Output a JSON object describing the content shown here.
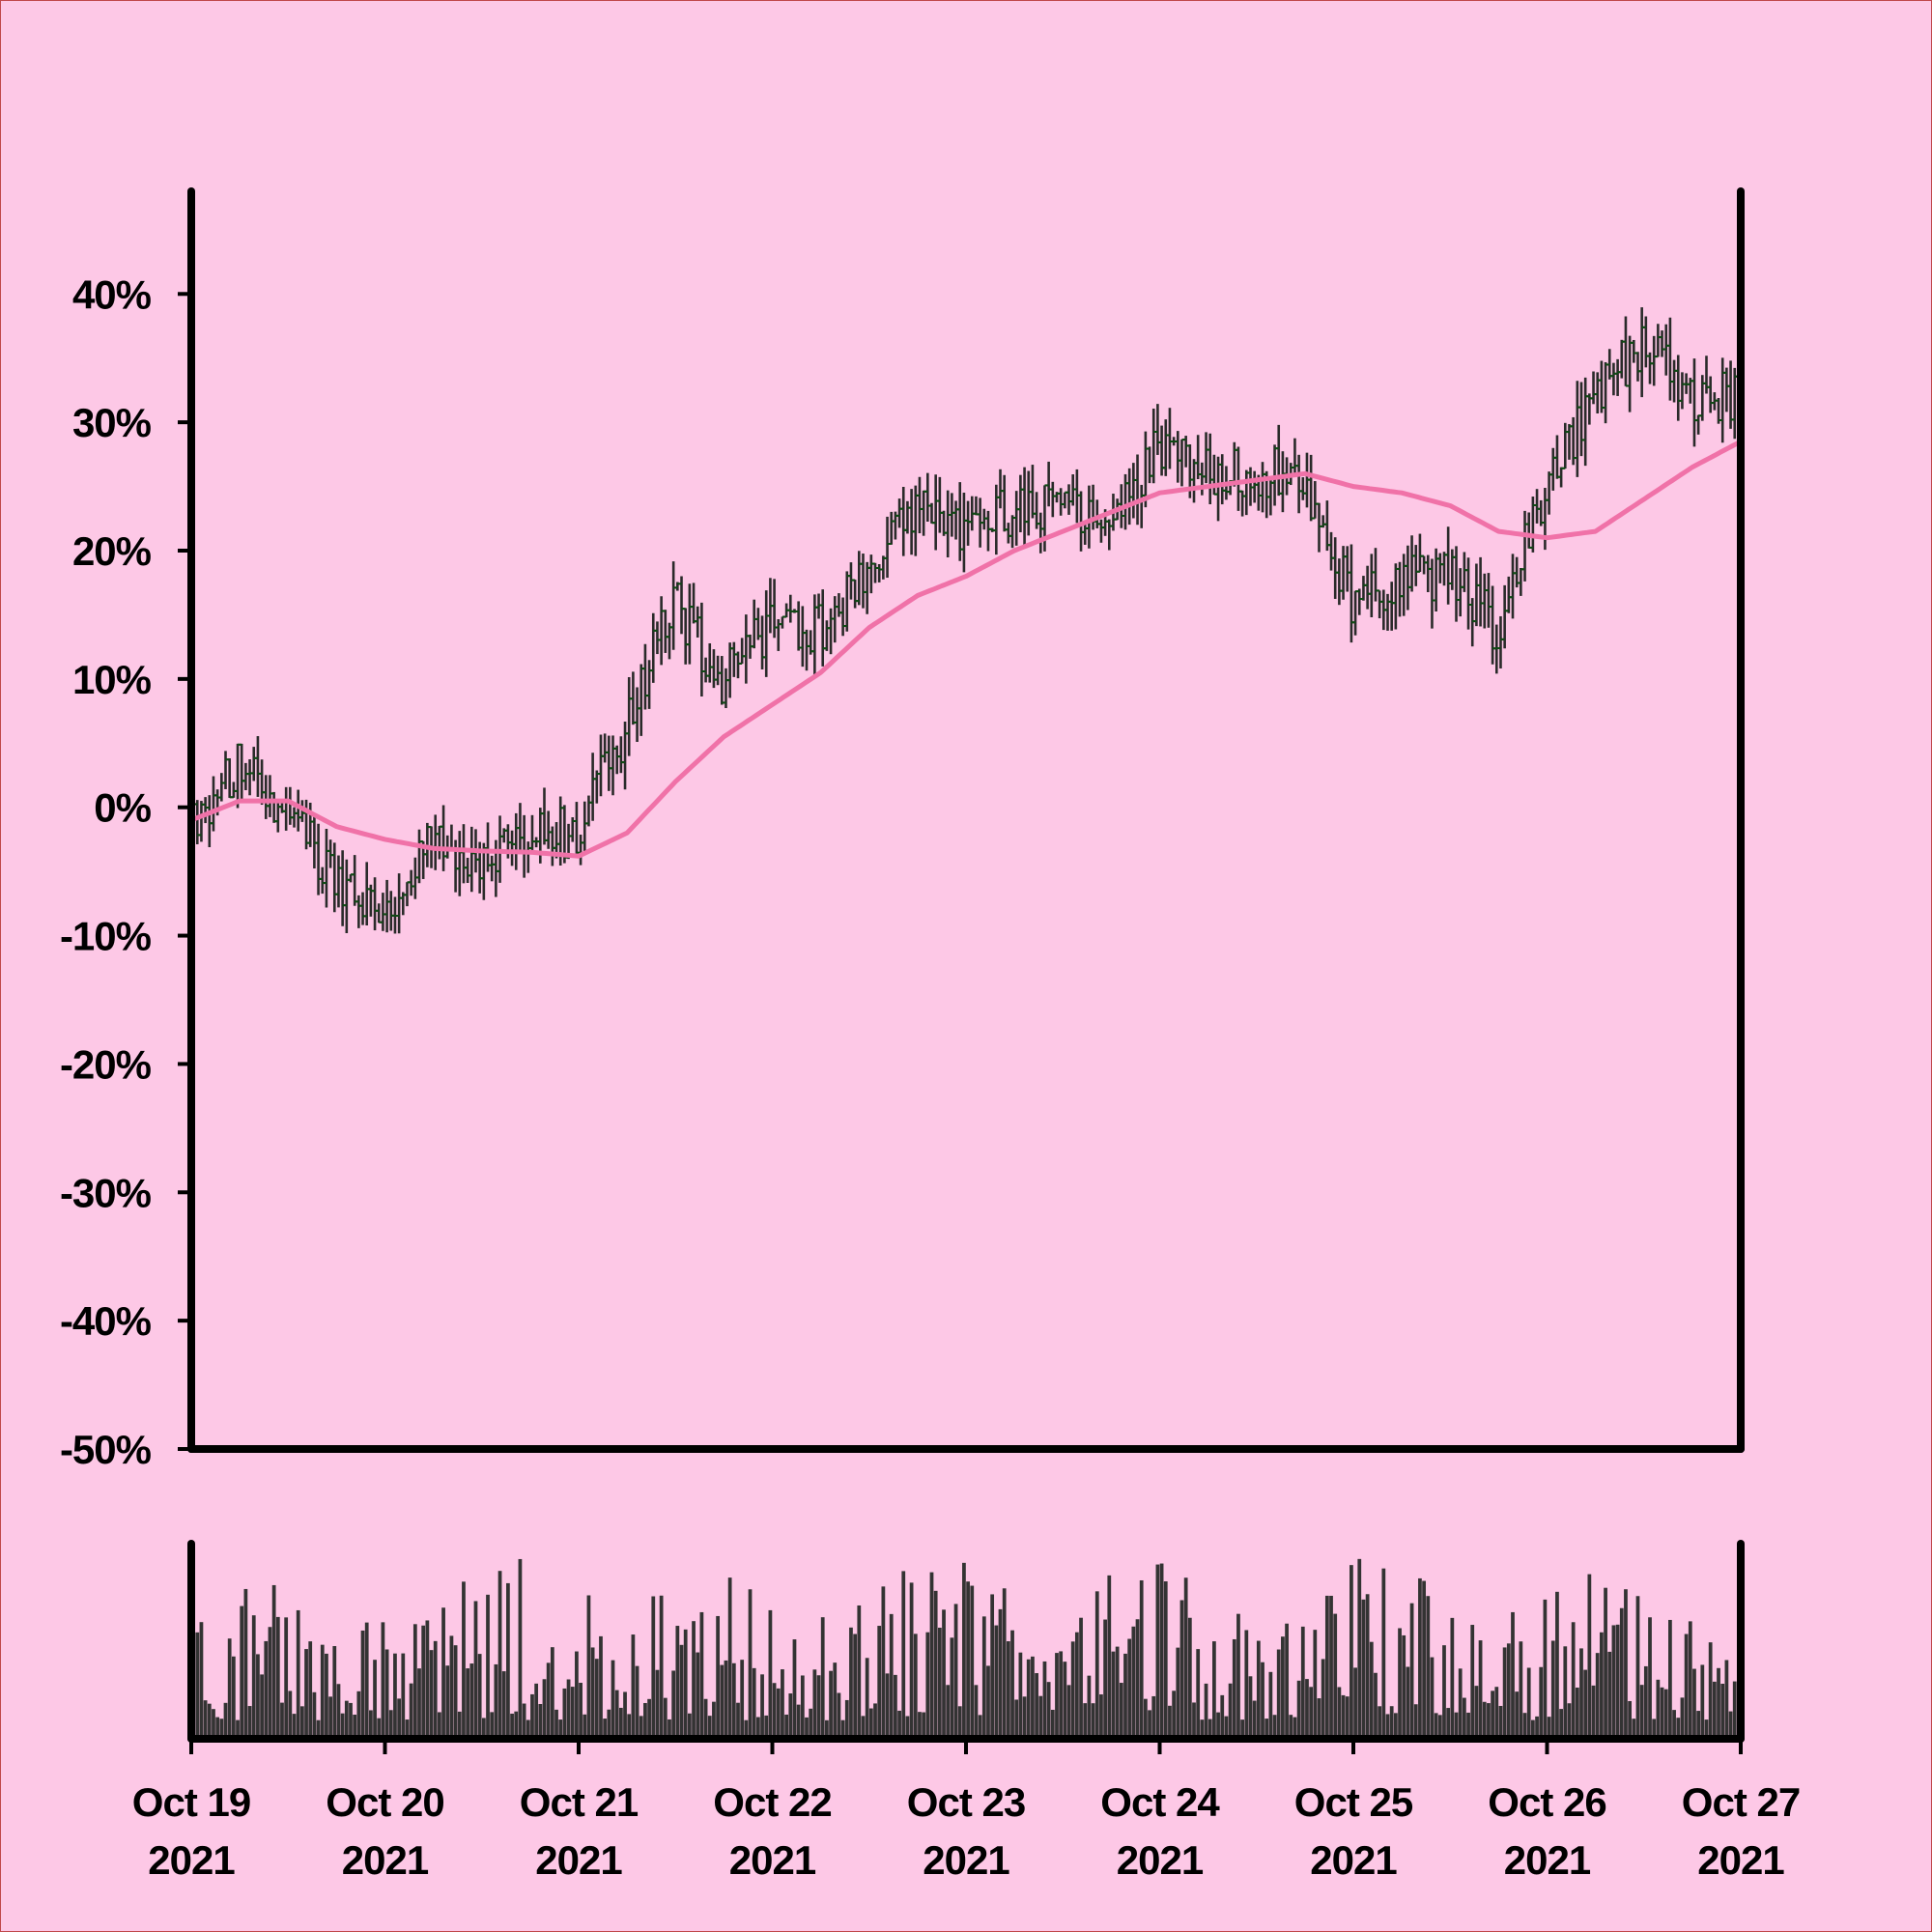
{
  "chart_data": {
    "type": "ohlc",
    "title": "",
    "xlabel": "",
    "ylabel": "",
    "price_axis": {
      "ylim": [
        -50,
        48
      ],
      "ticks": [
        40,
        30,
        20,
        10,
        0,
        -10,
        -20,
        -30,
        -40,
        -50
      ],
      "tick_labels": [
        "40%",
        "30%",
        "20%",
        "10%",
        "0%",
        "-10%",
        "-20%",
        "-30%",
        "-40%",
        "-50%"
      ],
      "unit": "%"
    },
    "x_axis": {
      "start": "2021-10-19",
      "end": "2021-10-27",
      "tick_labels": [
        {
          "date": "2021-10-19",
          "line1": "Oct 19",
          "line2": "2021"
        },
        {
          "date": "2021-10-20",
          "line1": "Oct 20",
          "line2": "2021"
        },
        {
          "date": "2021-10-21",
          "line1": "Oct 21",
          "line2": "2021"
        },
        {
          "date": "2021-10-22",
          "line1": "Oct 22",
          "line2": "2021"
        },
        {
          "date": "2021-10-23",
          "line1": "Oct 23",
          "line2": "2021"
        },
        {
          "date": "2021-10-24",
          "line1": "Oct 24",
          "line2": "2021"
        },
        {
          "date": "2021-10-25",
          "line1": "Oct 25",
          "line2": "2021"
        },
        {
          "date": "2021-10-26",
          "line1": "Oct 26",
          "line2": "2021"
        },
        {
          "date": "2021-10-27",
          "line1": "Oct 27",
          "line2": "2021"
        }
      ]
    },
    "price_series": {
      "name": "",
      "bar_interval_hours": 0.5,
      "close_anchors": [
        [
          "2021-10-19T00:00",
          -1
        ],
        [
          "2021-10-19T06:00",
          3
        ],
        [
          "2021-10-19T12:00",
          0
        ],
        [
          "2021-10-19T18:00",
          -6
        ],
        [
          "2021-10-20T00:00",
          -8
        ],
        [
          "2021-10-20T06:00",
          -3
        ],
        [
          "2021-10-20T12:00",
          -4
        ],
        [
          "2021-10-20T18:00",
          -2
        ],
        [
          "2021-10-21T00:00",
          -2
        ],
        [
          "2021-10-21T06:00",
          6
        ],
        [
          "2021-10-21T12:00",
          16
        ],
        [
          "2021-10-21T18:00",
          10
        ],
        [
          "2021-10-22T00:00",
          14
        ],
        [
          "2021-10-22T06:00",
          14
        ],
        [
          "2021-10-22T12:00",
          18
        ],
        [
          "2021-10-22T18:00",
          23
        ],
        [
          "2021-10-23T00:00",
          22
        ],
        [
          "2021-10-23T06:00",
          23
        ],
        [
          "2021-10-23T12:00",
          24
        ],
        [
          "2021-10-23T18:00",
          22
        ],
        [
          "2021-10-24T00:00",
          28
        ],
        [
          "2021-10-24T06:00",
          26
        ],
        [
          "2021-10-24T12:00",
          26
        ],
        [
          "2021-10-24T18:00",
          26
        ],
        [
          "2021-10-25T00:00",
          16
        ],
        [
          "2021-10-25T06:00",
          18
        ],
        [
          "2021-10-25T12:00",
          18
        ],
        [
          "2021-10-25T18:00",
          14
        ],
        [
          "2021-10-26T00:00",
          25
        ],
        [
          "2021-10-26T06:00",
          32
        ],
        [
          "2021-10-26T12:00",
          36
        ],
        [
          "2021-10-26T18:00",
          32
        ],
        [
          "2021-10-27T00:00",
          32
        ]
      ]
    },
    "moving_average": {
      "name": "",
      "color": "#f072a8",
      "points": [
        [
          "2021-10-19T00:00",
          -1
        ],
        [
          "2021-10-19T06:00",
          0.5
        ],
        [
          "2021-10-19T12:00",
          0.5
        ],
        [
          "2021-10-19T18:00",
          -1.5
        ],
        [
          "2021-10-20T00:00",
          -2.5
        ],
        [
          "2021-10-20T06:00",
          -3.2
        ],
        [
          "2021-10-20T12:00",
          -3.4
        ],
        [
          "2021-10-20T18:00",
          -3.5
        ],
        [
          "2021-10-21T00:00",
          -3.8
        ],
        [
          "2021-10-21T06:00",
          -2
        ],
        [
          "2021-10-21T12:00",
          2
        ],
        [
          "2021-10-21T18:00",
          5.5
        ],
        [
          "2021-10-22T00:00",
          8
        ],
        [
          "2021-10-22T06:00",
          10.5
        ],
        [
          "2021-10-22T12:00",
          14
        ],
        [
          "2021-10-22T18:00",
          16.5
        ],
        [
          "2021-10-23T00:00",
          18
        ],
        [
          "2021-10-23T06:00",
          20
        ],
        [
          "2021-10-23T12:00",
          21.5
        ],
        [
          "2021-10-23T18:00",
          23
        ],
        [
          "2021-10-24T00:00",
          24.5
        ],
        [
          "2021-10-24T06:00",
          25
        ],
        [
          "2021-10-24T12:00",
          25.5
        ],
        [
          "2021-10-24T18:00",
          26
        ],
        [
          "2021-10-25T00:00",
          25
        ],
        [
          "2021-10-25T06:00",
          24.5
        ],
        [
          "2021-10-25T12:00",
          23.5
        ],
        [
          "2021-10-25T18:00",
          21.5
        ],
        [
          "2021-10-26T00:00",
          21
        ],
        [
          "2021-10-26T06:00",
          21.5
        ],
        [
          "2021-10-26T12:00",
          24
        ],
        [
          "2021-10-26T18:00",
          26.5
        ],
        [
          "2021-10-27T00:00",
          28.5
        ]
      ]
    },
    "volume_series": {
      "name": "",
      "relative_range": [
        0.1,
        1.0
      ]
    },
    "grid": false,
    "legend": "none"
  },
  "colors": {
    "background": "#fdc8e6",
    "axes": "#000000",
    "ohlc_bar": "#2a2a2a",
    "ohlc_tick": "#0f4a14",
    "moving_average": "#f072a8",
    "volume_bar": "#333333",
    "frame": "#c0484a"
  }
}
